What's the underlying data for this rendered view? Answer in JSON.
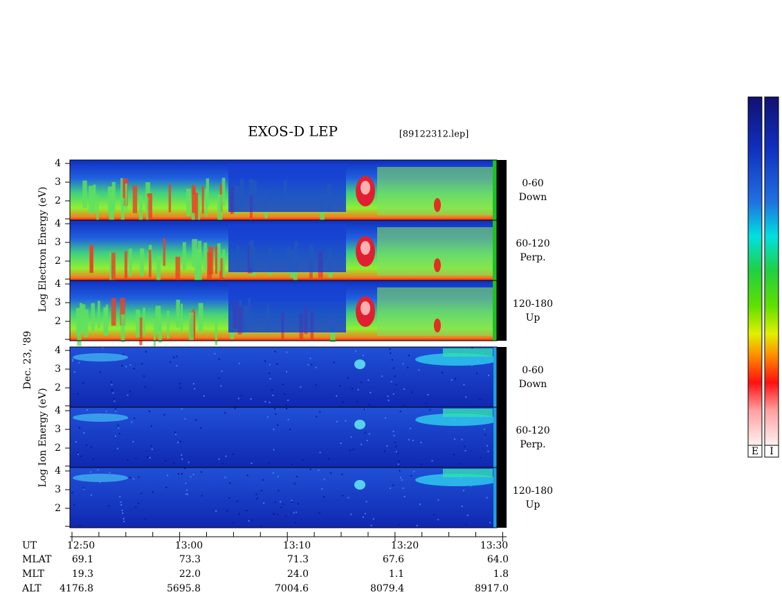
{
  "header": {
    "title": "EXOS-D LEP",
    "file": "[89122312.lep]"
  },
  "electron_panels": [
    {
      "range": "0-60",
      "direction": "Down",
      "yticks": [
        "4",
        "3",
        "2"
      ]
    },
    {
      "range": "60-120",
      "direction": "Perp.",
      "yticks": [
        "4",
        "3",
        "2"
      ]
    },
    {
      "range": "120-180",
      "direction": "Up",
      "yticks": [
        "4",
        "3",
        "2"
      ]
    }
  ],
  "ion_panels": [
    {
      "range": "0-60",
      "direction": "Down",
      "yticks": [
        "4",
        "3",
        "2"
      ]
    },
    {
      "range": "60-120",
      "direction": "Perp.",
      "yticks": [
        "4",
        "3",
        "2"
      ]
    },
    {
      "range": "120-180",
      "direction": "Up",
      "yticks": [
        "4",
        "3",
        "2"
      ]
    }
  ],
  "axis_labels": {
    "electron": "Log  Electron  Energy (eV)",
    "date": "Dec. 23, '89",
    "ion": "Log  Ion  Energy (eV)"
  },
  "ephemeris": {
    "rows": [
      [
        "UT",
        "12:50",
        "13:00",
        "13:10",
        "13:20",
        "13:30"
      ],
      [
        "MLAT",
        "69.1",
        "73.3",
        "71.3",
        "67.6",
        "64.0"
      ],
      [
        "MLT",
        "19.3",
        "22.0",
        "24.0",
        "1.1",
        "1.8"
      ],
      [
        "ALT",
        "4176.8",
        "5695.8",
        "7004.6",
        "8079.4",
        "8917.0"
      ]
    ]
  },
  "colorbars": [
    "E",
    "I"
  ]
}
